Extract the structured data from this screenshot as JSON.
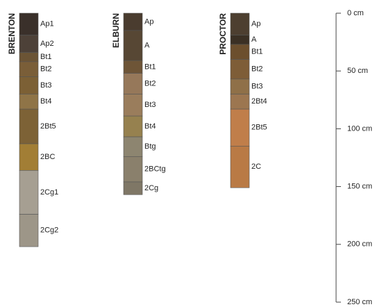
{
  "chart_data": {
    "type": "profile",
    "ylim": [
      0,
      250
    ],
    "yticks": [
      {
        "value": 0,
        "label": "0 cm"
      },
      {
        "value": 50,
        "label": "50 cm"
      },
      {
        "value": 100,
        "label": "100 cm"
      },
      {
        "value": 150,
        "label": "150 cm"
      },
      {
        "value": 200,
        "label": "200 cm"
      },
      {
        "value": 250,
        "label": "250 cm"
      }
    ],
    "profiles": [
      {
        "name": "BRENTON",
        "horizons": [
          {
            "name": "Ap1",
            "top": 0,
            "bottom": 19,
            "color": "#3a302a"
          },
          {
            "name": "Ap2",
            "top": 19,
            "bottom": 34,
            "color": "#4d4138"
          },
          {
            "name": "Bt1",
            "top": 34,
            "bottom": 42,
            "color": "#6b5435"
          },
          {
            "name": "Bt2",
            "top": 42,
            "bottom": 55,
            "color": "#7a5e38"
          },
          {
            "name": "Bt3",
            "top": 55,
            "bottom": 70,
            "color": "#7c6035"
          },
          {
            "name": "Bt4",
            "top": 70,
            "bottom": 83,
            "color": "#8f7447"
          },
          {
            "name": "2Bt5",
            "top": 83,
            "bottom": 113,
            "color": "#7d6236"
          },
          {
            "name": "2BC",
            "top": 113,
            "bottom": 136,
            "color": "#a27e35"
          },
          {
            "name": "2Cg1",
            "top": 136,
            "bottom": 174,
            "color": "#a69f92"
          },
          {
            "name": "2Cg2",
            "top": 174,
            "bottom": 202,
            "color": "#9d9688"
          }
        ]
      },
      {
        "name": "ELBURN",
        "horizons": [
          {
            "name": "Ap",
            "top": 0,
            "bottom": 15,
            "color": "#4a3c2f"
          },
          {
            "name": "A",
            "top": 15,
            "bottom": 41,
            "color": "#574734"
          },
          {
            "name": "Bt1",
            "top": 41,
            "bottom": 52,
            "color": "#6e5537"
          },
          {
            "name": "Bt2",
            "top": 52,
            "bottom": 70,
            "color": "#96785a"
          },
          {
            "name": "Bt3",
            "top": 70,
            "bottom": 89,
            "color": "#9a7d5c"
          },
          {
            "name": "Bt4",
            "top": 89,
            "bottom": 107,
            "color": "#96814f"
          },
          {
            "name": "Btg",
            "top": 107,
            "bottom": 124,
            "color": "#8d8570"
          },
          {
            "name": "2BCtg",
            "top": 124,
            "bottom": 146,
            "color": "#8a806c"
          },
          {
            "name": "2Cg",
            "top": 146,
            "bottom": 157,
            "color": "#7f7766"
          }
        ]
      },
      {
        "name": "PROCTOR",
        "horizons": [
          {
            "name": "Ap",
            "top": 0,
            "bottom": 19,
            "color": "#4d3f30"
          },
          {
            "name": "A",
            "top": 19,
            "bottom": 27,
            "color": "#3b3024"
          },
          {
            "name": "Bt1",
            "top": 27,
            "bottom": 40,
            "color": "#6c4f2d"
          },
          {
            "name": "Bt2",
            "top": 40,
            "bottom": 57,
            "color": "#7e5d37"
          },
          {
            "name": "Bt3",
            "top": 57,
            "bottom": 70,
            "color": "#8f7048"
          },
          {
            "name": "2Bt4",
            "top": 70,
            "bottom": 83,
            "color": "#9c7650"
          },
          {
            "name": "2Bt5",
            "top": 83,
            "bottom": 115,
            "color": "#c07e4a"
          },
          {
            "name": "2C",
            "top": 115,
            "bottom": 151,
            "color": "#b97a45"
          }
        ]
      }
    ]
  }
}
